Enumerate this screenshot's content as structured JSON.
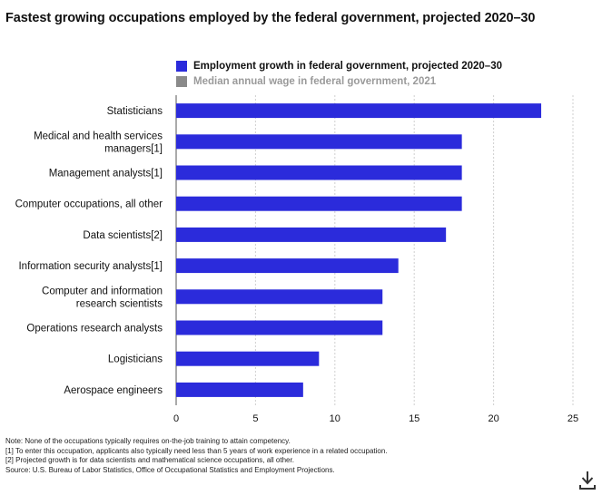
{
  "title": "Fastest growing occupations employed by the federal government, projected 2020–30",
  "legend": [
    {
      "label": "Employment growth in federal government, projected 2020–30",
      "color": "#2b2bdb",
      "active": true
    },
    {
      "label": "Median annual wage in federal government, 2021",
      "color": "#8a8a8a",
      "active": false
    }
  ],
  "chart_data": {
    "type": "bar",
    "orientation": "horizontal",
    "categories": [
      [
        "Statisticians"
      ],
      [
        "Medical and health services",
        "managers[1]"
      ],
      [
        "Management analysts[1]"
      ],
      [
        "Computer occupations, all other"
      ],
      [
        "Data scientists[2]"
      ],
      [
        "Information security analysts[1]"
      ],
      [
        "Computer and information",
        "research scientists"
      ],
      [
        "Operations research analysts"
      ],
      [
        "Logisticians"
      ],
      [
        "Aerospace engineers"
      ]
    ],
    "series": [
      {
        "name": "Employment growth in federal government, projected 2020–30",
        "values": [
          23,
          18,
          18,
          18,
          17,
          14,
          13,
          13,
          9,
          8
        ]
      }
    ],
    "xlim": [
      0,
      25
    ],
    "xticks": [
      0,
      5,
      10,
      15,
      20,
      25
    ],
    "bar_color": "#2b2bdb",
    "grid": "vertical-dashed",
    "legend_position": "top"
  },
  "notes": [
    "Note: None of the occupations typically requires on-the-job training to attain competency.",
    "[1] To enter this occupation, applicants also typically need less than 5 years of work experience in a related occupation.",
    "[2] Projected growth is for data scientists and mathematical science occupations, all other.",
    "Source: U.S. Bureau of Labor Statistics, Office of Occupational Statistics and Employment Projections."
  ],
  "icons": {
    "download": "download-icon"
  }
}
